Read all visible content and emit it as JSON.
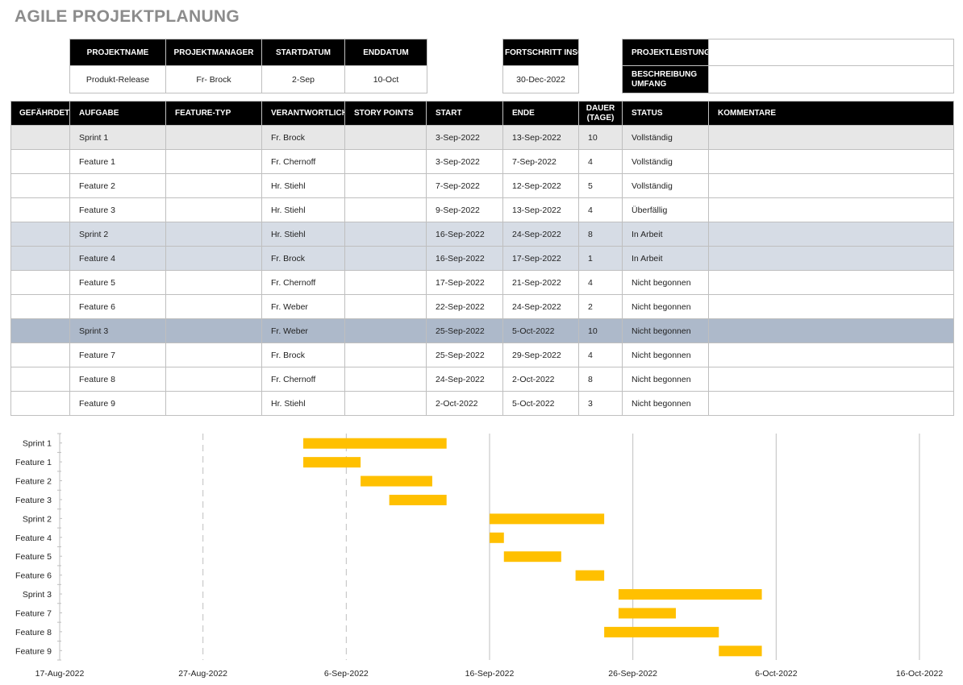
{
  "title": "AGILE PROJEKTPLANUNG",
  "summary": {
    "headers": [
      "PROJEKTNAME",
      "PROJEKTMANAGER",
      "STARTDATUM",
      "ENDDATUM"
    ],
    "values": [
      "Produkt-Release",
      "Fr- Brock",
      "2-Sep",
      "10-Oct"
    ],
    "progress_label": "FORTSCHRITT INSG.",
    "progress_value": "30-Dec-2022",
    "performance_label": "PROJEKTLEISTUNG",
    "performance_value": "",
    "scope_label": "BESCHREIBUNG UMFANG",
    "scope_value": ""
  },
  "table": {
    "headers": [
      "GEFÄHRDET",
      "AUFGABE",
      "FEATURE-TYP",
      "VERANTWORTLICH",
      "STORY POINTS",
      "START",
      "ENDE",
      "DAUER (TAGE)",
      "STATUS",
      "KOMMENTARE"
    ],
    "rows": [
      {
        "task": "Sprint 1",
        "owner": "Fr. Brock",
        "start": "3-Sep-2022",
        "end": "13-Sep-2022",
        "days": "10",
        "status": "Vollständig",
        "bg": "#e7e7e7"
      },
      {
        "task": "Feature 1",
        "owner": "Fr. Chernoff",
        "start": "3-Sep-2022",
        "end": "7-Sep-2022",
        "days": "4",
        "status": "Vollständig",
        "bg": "#ffffff"
      },
      {
        "task": "Feature 2",
        "owner": "Hr. Stiehl",
        "start": "7-Sep-2022",
        "end": "12-Sep-2022",
        "days": "5",
        "status": "Vollständig",
        "bg": "#ffffff"
      },
      {
        "task": "Feature 3",
        "owner": "Hr. Stiehl",
        "start": "9-Sep-2022",
        "end": "13-Sep-2022",
        "days": "4",
        "status": "Überfällig",
        "bg": "#ffffff"
      },
      {
        "task": "Sprint 2",
        "owner": "Hr. Stiehl",
        "start": "16-Sep-2022",
        "end": "24-Sep-2022",
        "days": "8",
        "status": "In Arbeit",
        "bg": "#d6dce5"
      },
      {
        "task": "Feature 4",
        "owner": "Fr. Brock",
        "start": "16-Sep-2022",
        "end": "17-Sep-2022",
        "days": "1",
        "status": "In Arbeit",
        "bg": "#d6dce5"
      },
      {
        "task": "Feature 5",
        "owner": "Fr. Chernoff",
        "start": "17-Sep-2022",
        "end": "21-Sep-2022",
        "days": "4",
        "status": "Nicht begonnen",
        "bg": "#ffffff"
      },
      {
        "task": "Feature 6",
        "owner": "Fr. Weber",
        "start": "22-Sep-2022",
        "end": "24-Sep-2022",
        "days": "2",
        "status": "Nicht begonnen",
        "bg": "#ffffff"
      },
      {
        "task": "Sprint 3",
        "owner": "Fr. Weber",
        "start": "25-Sep-2022",
        "end": "5-Oct-2022",
        "days": "10",
        "status": "Nicht begonnen",
        "bg": "#adb9ca"
      },
      {
        "task": "Feature 7",
        "owner": "Fr. Brock",
        "start": "25-Sep-2022",
        "end": "29-Sep-2022",
        "days": "4",
        "status": "Nicht begonnen",
        "bg": "#ffffff"
      },
      {
        "task": "Feature 8",
        "owner": "Fr. Chernoff",
        "start": "24-Sep-2022",
        "end": "2-Oct-2022",
        "days": "8",
        "status": "Nicht begonnen",
        "bg": "#ffffff"
      },
      {
        "task": "Feature 9",
        "owner": "Hr. Stiehl",
        "start": "2-Oct-2022",
        "end": "5-Oct-2022",
        "days": "3",
        "status": "Nicht begonnen",
        "bg": "#ffffff"
      }
    ]
  },
  "chart_data": {
    "type": "bar",
    "orientation": "horizontal-gantt",
    "categories": [
      "Sprint 1",
      "Feature 1",
      "Feature 2",
      "Feature 3",
      "Sprint 2",
      "Feature 4",
      "Feature 5",
      "Feature 6",
      "Sprint 3",
      "Feature 7",
      "Feature 8",
      "Feature 9"
    ],
    "series": [
      {
        "start": [
          "2022-09-03",
          "2022-09-03",
          "2022-09-07",
          "2022-09-09",
          "2022-09-16",
          "2022-09-16",
          "2022-09-17",
          "2022-09-22",
          "2022-09-25",
          "2022-09-25",
          "2022-09-24",
          "2022-10-02"
        ],
        "end": [
          "2022-09-13",
          "2022-09-07",
          "2022-09-12",
          "2022-09-13",
          "2022-09-24",
          "2022-09-17",
          "2022-09-21",
          "2022-09-24",
          "2022-10-05",
          "2022-09-29",
          "2022-10-02",
          "2022-10-05"
        ],
        "color": "#ffc000"
      }
    ],
    "xlim": [
      "2022-08-17",
      "2022-10-16"
    ],
    "xticks": [
      "17-Aug-2022",
      "27-Aug-2022",
      "6-Sep-2022",
      "16-Sep-2022",
      "26-Sep-2022",
      "6-Oct-2022",
      "16-Oct-2022"
    ],
    "grid": true
  }
}
